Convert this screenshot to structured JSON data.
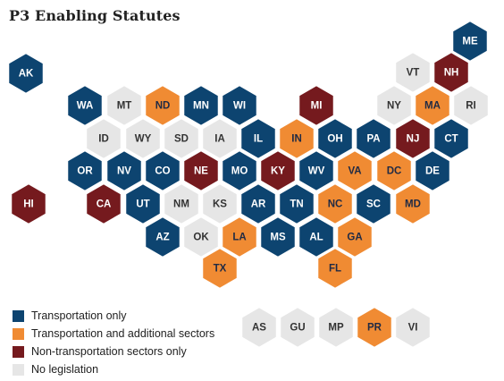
{
  "title": "P3 Enabling Statutes",
  "colors": {
    "transport": "#0d4470",
    "additional": "#f08b33",
    "non_transport": "#751a1e",
    "none": "#e6e6e6"
  },
  "label_colors": {
    "transport": "#ffffff",
    "additional": "#1f2a44",
    "non_transport": "#ffffff",
    "none": "#333333"
  },
  "legend": [
    {
      "key": "transport",
      "label": "Transportation only"
    },
    {
      "key": "additional",
      "label": "Transportation and additional sectors"
    },
    {
      "key": "non_transport",
      "label": "Non-transportation sectors only"
    },
    {
      "key": "none",
      "label": "No legislation"
    }
  ],
  "states": [
    {
      "code": "ME",
      "status": "transport"
    },
    {
      "code": "AK",
      "status": "transport"
    },
    {
      "code": "VT",
      "status": "none"
    },
    {
      "code": "NH",
      "status": "non_transport"
    },
    {
      "code": "WA",
      "status": "transport"
    },
    {
      "code": "MT",
      "status": "none"
    },
    {
      "code": "ND",
      "status": "additional"
    },
    {
      "code": "MN",
      "status": "transport"
    },
    {
      "code": "WI",
      "status": "transport"
    },
    {
      "code": "MI",
      "status": "non_transport"
    },
    {
      "code": "NY",
      "status": "none"
    },
    {
      "code": "MA",
      "status": "additional"
    },
    {
      "code": "RI",
      "status": "none"
    },
    {
      "code": "ID",
      "status": "none"
    },
    {
      "code": "WY",
      "status": "none"
    },
    {
      "code": "SD",
      "status": "none"
    },
    {
      "code": "IA",
      "status": "none"
    },
    {
      "code": "IL",
      "status": "transport"
    },
    {
      "code": "IN",
      "status": "additional"
    },
    {
      "code": "OH",
      "status": "transport"
    },
    {
      "code": "PA",
      "status": "transport"
    },
    {
      "code": "NJ",
      "status": "non_transport"
    },
    {
      "code": "CT",
      "status": "transport"
    },
    {
      "code": "OR",
      "status": "transport"
    },
    {
      "code": "NV",
      "status": "transport"
    },
    {
      "code": "CO",
      "status": "transport"
    },
    {
      "code": "NE",
      "status": "non_transport"
    },
    {
      "code": "MO",
      "status": "transport"
    },
    {
      "code": "KY",
      "status": "non_transport"
    },
    {
      "code": "WV",
      "status": "transport"
    },
    {
      "code": "VA",
      "status": "additional"
    },
    {
      "code": "DC",
      "status": "additional"
    },
    {
      "code": "DE",
      "status": "transport"
    },
    {
      "code": "HI",
      "status": "non_transport"
    },
    {
      "code": "CA",
      "status": "non_transport"
    },
    {
      "code": "UT",
      "status": "transport"
    },
    {
      "code": "NM",
      "status": "none"
    },
    {
      "code": "KS",
      "status": "none"
    },
    {
      "code": "AR",
      "status": "transport"
    },
    {
      "code": "TN",
      "status": "transport"
    },
    {
      "code": "NC",
      "status": "additional"
    },
    {
      "code": "SC",
      "status": "transport"
    },
    {
      "code": "MD",
      "status": "additional"
    },
    {
      "code": "AZ",
      "status": "transport"
    },
    {
      "code": "OK",
      "status": "none"
    },
    {
      "code": "LA",
      "status": "additional"
    },
    {
      "code": "MS",
      "status": "transport"
    },
    {
      "code": "AL",
      "status": "transport"
    },
    {
      "code": "GA",
      "status": "additional"
    },
    {
      "code": "TX",
      "status": "additional"
    },
    {
      "code": "FL",
      "status": "additional"
    }
  ],
  "territories": [
    {
      "code": "AS",
      "status": "none"
    },
    {
      "code": "GU",
      "status": "none"
    },
    {
      "code": "MP",
      "status": "none"
    },
    {
      "code": "PR",
      "status": "additional"
    },
    {
      "code": "VI",
      "status": "none"
    }
  ]
}
